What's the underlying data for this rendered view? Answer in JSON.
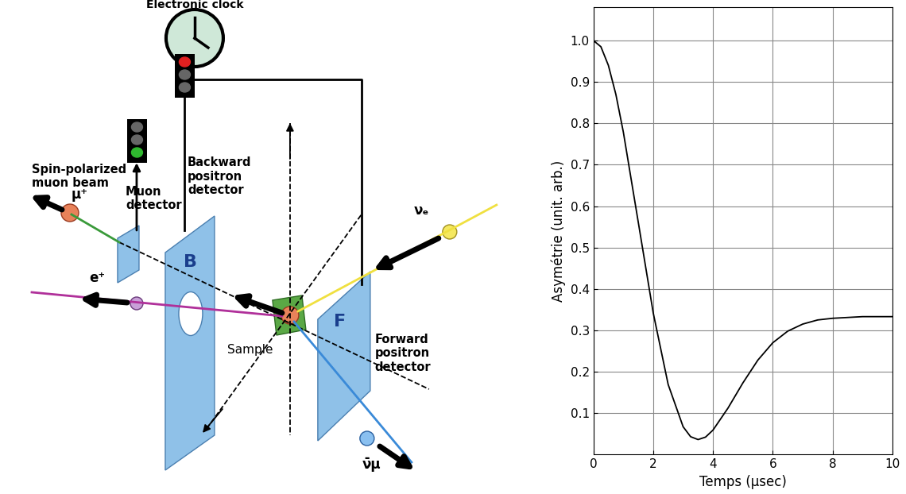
{
  "diagram": {
    "clock": "Electronic clock",
    "beam": "Spin-polarized\nmuon beam",
    "muon": "μ⁺",
    "muon_detector": "Muon\ndetector",
    "backward_detector": "Backward\npositron\ndetector",
    "backward_letter": "B",
    "positron": "e⁺",
    "sample": "Sample",
    "forward_letter": "F",
    "forward_detector": "Forward\npositron\ndetector",
    "electron_neutrino": "νₑ",
    "muon_antineutrino": "ν̄μ"
  },
  "chart_data": {
    "type": "line",
    "x_label": "Temps (µsec)",
    "y_label": "Asymétrie (unit. arb.)",
    "x": [
      0,
      0.25,
      0.5,
      0.75,
      1.0,
      1.5,
      2.0,
      2.5,
      3.0,
      3.25,
      3.5,
      3.75,
      4.0,
      4.5,
      5.0,
      5.5,
      6.0,
      6.5,
      7.0,
      7.5,
      8.0,
      8.5,
      9.0,
      9.5,
      10.0
    ],
    "values": [
      1.0,
      0.985,
      0.94,
      0.87,
      0.779,
      0.561,
      0.342,
      0.169,
      0.067,
      0.043,
      0.036,
      0.042,
      0.059,
      0.112,
      0.173,
      0.228,
      0.27,
      0.298,
      0.315,
      0.325,
      0.329,
      0.331,
      0.333,
      0.333,
      0.333
    ],
    "color": "#000000",
    "xlim": [
      0,
      10
    ],
    "xticks": [
      0,
      2,
      4,
      6,
      8,
      10
    ],
    "ylim": [
      0,
      1.08
    ],
    "yticks": [
      0.1,
      0.2,
      0.3,
      0.4,
      0.5,
      0.6,
      0.7,
      0.8,
      0.9,
      1.0
    ],
    "grid": true
  }
}
